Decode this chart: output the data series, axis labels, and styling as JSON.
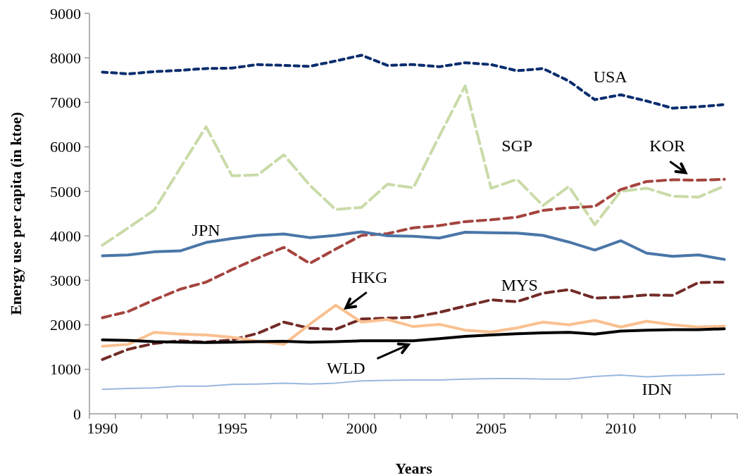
{
  "chart_data": {
    "type": "line",
    "xlabel": "Years",
    "ylabel": "Energy use per capita (in ktoe)",
    "x": [
      1990,
      1991,
      1992,
      1993,
      1994,
      1995,
      1996,
      1997,
      1998,
      1999,
      2000,
      2001,
      2002,
      2003,
      2004,
      2005,
      2006,
      2007,
      2008,
      2009,
      2010,
      2011,
      2012,
      2013,
      2014
    ],
    "xlim": [
      1989.5,
      2014.5
    ],
    "xticks": [
      1990,
      1995,
      2000,
      2005,
      2010,
      {
        "value": 1989.5,
        "label": null
      },
      {
        "value": 1990.5,
        "label": null
      },
      {
        "value": 1991.5,
        "label": null
      },
      {
        "value": 1992.5,
        "label": null
      },
      {
        "value": 1993.5,
        "label": null
      },
      {
        "value": 1994.5,
        "label": null
      },
      {
        "value": 1995.5,
        "label": null
      },
      {
        "value": 1996.5,
        "label": null
      },
      {
        "value": 1997.5,
        "label": null
      },
      {
        "value": 1998.5,
        "label": null
      },
      {
        "value": 1999.5,
        "label": null
      },
      {
        "value": 2000.5,
        "label": null
      },
      {
        "value": 2001.5,
        "label": null
      },
      {
        "value": 2002.5,
        "label": null
      },
      {
        "value": 2003.5,
        "label": null
      },
      {
        "value": 2004.5,
        "label": null
      },
      {
        "value": 2005.5,
        "label": null
      },
      {
        "value": 2006.5,
        "label": null
      },
      {
        "value": 2007.5,
        "label": null
      },
      {
        "value": 2008.5,
        "label": null
      },
      {
        "value": 2009.5,
        "label": null
      },
      {
        "value": 2010.5,
        "label": null
      },
      {
        "value": 2011.5,
        "label": null
      },
      {
        "value": 2012.5,
        "label": null
      },
      {
        "value": 2013.5,
        "label": null
      },
      {
        "value": 2014.5,
        "label": null
      }
    ],
    "ylim": [
      0,
      9000
    ],
    "yticks": [
      0,
      1000,
      2000,
      3000,
      4000,
      5000,
      6000,
      7000,
      8000,
      9000
    ],
    "grid": false,
    "series": [
      {
        "name": "USA",
        "color": "#0a2d6e",
        "line_style": "dashed",
        "values": [
          7680,
          7640,
          7690,
          7720,
          7760,
          7770,
          7850,
          7830,
          7810,
          7930,
          8060,
          7830,
          7850,
          7800,
          7890,
          7850,
          7710,
          7760,
          7480,
          7060,
          7170,
          7030,
          6870,
          6900,
          6950
        ]
      },
      {
        "name": "SGP",
        "color": "#c9dba8",
        "line_style": "dashed",
        "values": [
          3790,
          4180,
          4580,
          5520,
          6450,
          5350,
          5370,
          5820,
          5140,
          4590,
          4640,
          5160,
          5080,
          6240,
          7370,
          5070,
          5270,
          4680,
          5110,
          4250,
          5000,
          5070,
          4890,
          4870,
          5120
        ]
      },
      {
        "name": "KOR",
        "color": "#a5443e",
        "line_style": "dashed",
        "values": [
          2160,
          2300,
          2560,
          2800,
          2960,
          3240,
          3500,
          3740,
          3380,
          3700,
          4010,
          4050,
          4180,
          4230,
          4320,
          4360,
          4420,
          4570,
          4630,
          4660,
          5040,
          5220,
          5260,
          5250,
          5270
        ]
      },
      {
        "name": "JPN",
        "color": "#4a76a8",
        "line_style": "solid",
        "values": [
          3550,
          3570,
          3640,
          3660,
          3850,
          3940,
          4010,
          4040,
          3960,
          4010,
          4090,
          4000,
          3990,
          3950,
          4080,
          4070,
          4060,
          4010,
          3860,
          3680,
          3890,
          3610,
          3540,
          3570,
          3470
        ]
      },
      {
        "name": "MYS",
        "color": "#722b27",
        "line_style": "dashed",
        "values": [
          1220,
          1450,
          1580,
          1640,
          1610,
          1660,
          1810,
          2060,
          1920,
          1900,
          2130,
          2150,
          2170,
          2280,
          2420,
          2560,
          2520,
          2710,
          2790,
          2600,
          2620,
          2670,
          2660,
          2950,
          2960
        ]
      },
      {
        "name": "HKG",
        "color": "#fac090",
        "line_style": "solid",
        "values": [
          1520,
          1560,
          1830,
          1790,
          1770,
          1720,
          1630,
          1560,
          2010,
          2440,
          2060,
          2120,
          1960,
          2010,
          1880,
          1840,
          1930,
          2060,
          2000,
          2100,
          1950,
          2080,
          2000,
          1950,
          1970
        ]
      },
      {
        "name": "WLD",
        "color": "#000000",
        "line_style": "solid",
        "values": [
          1660,
          1650,
          1620,
          1610,
          1600,
          1610,
          1620,
          1630,
          1610,
          1620,
          1640,
          1640,
          1640,
          1690,
          1740,
          1770,
          1800,
          1820,
          1830,
          1790,
          1860,
          1880,
          1890,
          1890,
          1910
        ]
      },
      {
        "name": "IDN",
        "color": "#9ab8e0",
        "line_style": "solid",
        "values": [
          550,
          570,
          580,
          620,
          620,
          660,
          670,
          690,
          670,
          690,
          740,
          750,
          760,
          760,
          780,
          790,
          790,
          780,
          780,
          840,
          870,
          830,
          860,
          870,
          890
        ]
      }
    ]
  }
}
